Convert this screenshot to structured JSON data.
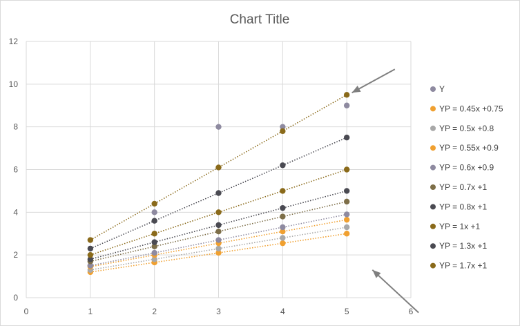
{
  "chart_data": {
    "type": "scatter",
    "title": "Chart Title",
    "xlabel": "",
    "ylabel": "",
    "xlim": [
      0,
      6
    ],
    "ylim": [
      0,
      12
    ],
    "x_ticks": [
      0,
      1,
      2,
      3,
      4,
      5,
      6
    ],
    "y_ticks": [
      0,
      2,
      4,
      6,
      8,
      10,
      12
    ],
    "grid": true,
    "legend_position": "right",
    "x": [
      1,
      2,
      3,
      4,
      5
    ],
    "series": [
      {
        "name": "Y",
        "color": "#8e8aa0",
        "values": [
          1.5,
          4.0,
          8.0,
          8.0,
          9.0
        ],
        "trendline": false
      },
      {
        "name": "YP = 0.45x +0.75",
        "color": "#f0a030",
        "values": [
          1.2,
          1.65,
          2.1,
          2.55,
          3.0
        ],
        "trendline": true
      },
      {
        "name": "YP = 0.5x +0.8",
        "color": "#a8a8a8",
        "values": [
          1.3,
          1.8,
          2.3,
          2.8,
          3.3
        ],
        "trendline": true
      },
      {
        "name": "YP = 0.55x +0.9",
        "color": "#f0a030",
        "values": [
          1.45,
          2.0,
          2.55,
          3.1,
          3.65
        ],
        "trendline": true
      },
      {
        "name": "YP = 0.6x +0.9",
        "color": "#8e8aa0",
        "values": [
          1.5,
          2.1,
          2.7,
          3.3,
          3.9
        ],
        "trendline": true
      },
      {
        "name": "YP = 0.7x +1",
        "color": "#7d6e48",
        "values": [
          1.7,
          2.4,
          3.1,
          3.8,
          4.5
        ],
        "trendline": true
      },
      {
        "name": "YP = 0.8x +1",
        "color": "#4a4a52",
        "values": [
          1.8,
          2.6,
          3.4,
          4.2,
          5.0
        ],
        "trendline": true
      },
      {
        "name": "YP = 1x +1",
        "color": "#8a6a1a",
        "values": [
          2.0,
          3.0,
          4.0,
          5.0,
          6.0
        ],
        "trendline": true
      },
      {
        "name": "YP = 1.3x +1",
        "color": "#4a4a52",
        "values": [
          2.3,
          3.6,
          4.9,
          6.2,
          7.5
        ],
        "trendline": true
      },
      {
        "name": "YP = 1.7x +1",
        "color": "#8a6a1a",
        "values": [
          2.7,
          4.4,
          6.1,
          7.8,
          9.5
        ],
        "trendline": true
      }
    ],
    "annotations": [
      {
        "type": "arrow",
        "from": [
          5.75,
          10.7
        ],
        "to": [
          5.08,
          9.6
        ]
      },
      {
        "type": "arrow",
        "from": [
          6.12,
          -0.7
        ],
        "to": [
          5.4,
          1.3
        ]
      }
    ]
  }
}
